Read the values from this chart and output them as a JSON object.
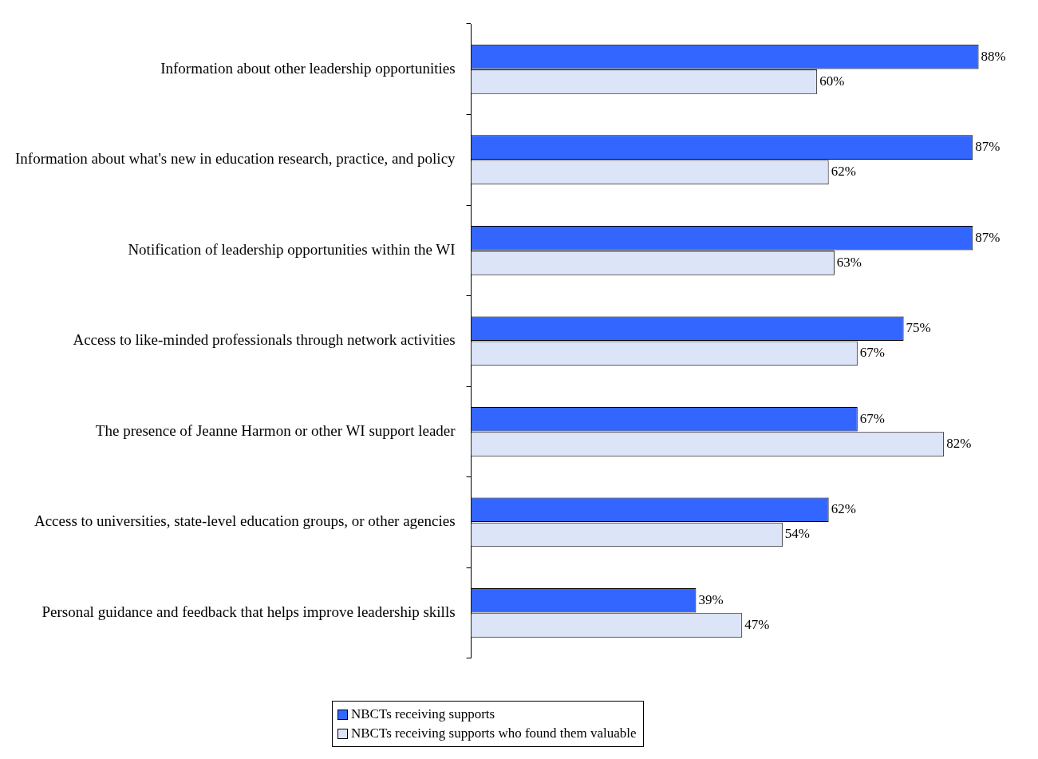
{
  "chart_data": {
    "type": "bar",
    "orientation": "horizontal",
    "legend": "bottom",
    "categories": [
      "Information about other leadership opportunities",
      "Information about what's new in education research, practice, and policy",
      "Notification of leadership opportunities within the WI",
      "Access to like-minded professionals through network activities",
      "The presence of Jeanne Harmon or other WI support leader",
      "Access to universities, state-level education groups, or other agencies",
      "Personal guidance and feedback that helps improve leadership skills"
    ],
    "series": [
      {
        "name": "NBCTs receiving supports",
        "color": "#3366ff",
        "values": [
          88,
          87,
          87,
          75,
          67,
          62,
          39
        ],
        "value_labels": [
          "88%",
          "87%",
          "87%",
          "75%",
          "67%",
          "62%",
          "39%"
        ]
      },
      {
        "name": "NBCTs receiving supports who found them valuable",
        "color": "#dce4f7",
        "values": [
          60,
          62,
          63,
          67,
          82,
          54,
          47
        ],
        "value_labels": [
          "60%",
          "62%",
          "63%",
          "67%",
          "82%",
          "54%",
          "47%"
        ]
      }
    ]
  }
}
